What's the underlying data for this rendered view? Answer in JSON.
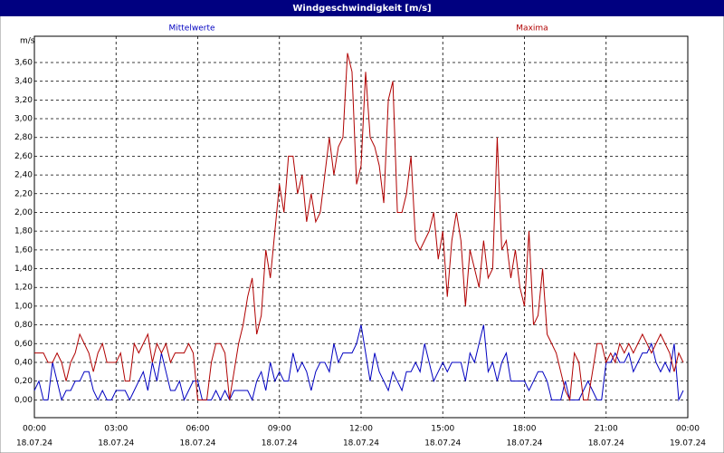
{
  "chart_data": {
    "type": "line",
    "title": "Windgeschwindigkeit [m/s]",
    "y_unit": "m/s",
    "grid": true,
    "x": [
      0,
      10,
      20,
      30,
      40,
      50,
      60,
      70,
      80,
      90,
      100,
      110,
      120,
      130,
      140,
      150,
      160,
      170,
      180,
      190,
      200,
      210,
      220,
      230,
      240,
      250,
      260,
      270,
      280,
      290,
      300,
      310,
      320,
      330,
      340,
      350,
      360,
      370,
      380,
      390,
      400,
      410,
      420,
      430,
      440,
      450,
      460,
      470,
      480,
      490,
      500,
      510,
      520,
      530,
      540,
      550,
      560,
      570,
      580,
      590,
      600,
      610,
      620,
      630,
      640,
      650,
      660,
      670,
      680,
      690,
      700,
      710,
      720,
      730,
      740,
      750,
      760,
      770,
      780,
      790,
      800,
      810,
      820,
      830,
      840,
      850,
      860,
      870,
      880,
      890,
      900,
      910,
      920,
      930,
      940,
      950,
      960,
      970,
      980,
      990,
      1000,
      1010,
      1020,
      1030,
      1040,
      1050,
      1060,
      1070,
      1080,
      1090,
      1100,
      1110,
      1120,
      1130,
      1140,
      1150,
      1160,
      1170,
      1180,
      1190,
      1200,
      1210,
      1220,
      1230,
      1240,
      1250,
      1260,
      1270,
      1280,
      1290,
      1300,
      1310,
      1320,
      1330,
      1340,
      1350,
      1360,
      1370,
      1380,
      1390,
      1400,
      1410,
      1420,
      1430
    ],
    "series": [
      {
        "name": "Mittelwerte",
        "color": "#0000c0",
        "values": [
          0.1,
          0.2,
          0.0,
          0.0,
          0.4,
          0.2,
          0.0,
          0.1,
          0.1,
          0.2,
          0.2,
          0.3,
          0.3,
          0.1,
          0.0,
          0.1,
          0.0,
          0.0,
          0.1,
          0.1,
          0.1,
          0.0,
          0.1,
          0.2,
          0.3,
          0.1,
          0.4,
          0.2,
          0.5,
          0.3,
          0.1,
          0.1,
          0.2,
          0.0,
          0.1,
          0.2,
          0.2,
          0.0,
          0.0,
          0.0,
          0.1,
          0.0,
          0.1,
          0.0,
          0.1,
          0.1,
          0.1,
          0.1,
          0.0,
          0.2,
          0.3,
          0.1,
          0.4,
          0.2,
          0.3,
          0.2,
          0.2,
          0.5,
          0.3,
          0.4,
          0.3,
          0.1,
          0.3,
          0.4,
          0.4,
          0.3,
          0.6,
          0.4,
          0.5,
          0.5,
          0.5,
          0.6,
          0.8,
          0.5,
          0.2,
          0.5,
          0.3,
          0.2,
          0.1,
          0.3,
          0.2,
          0.1,
          0.3,
          0.3,
          0.4,
          0.3,
          0.6,
          0.4,
          0.2,
          0.3,
          0.4,
          0.3,
          0.4,
          0.4,
          0.4,
          0.2,
          0.5,
          0.4,
          0.6,
          0.8,
          0.3,
          0.4,
          0.2,
          0.4,
          0.5,
          0.2,
          0.2,
          0.2,
          0.2,
          0.1,
          0.2,
          0.3,
          0.3,
          0.2,
          0.0,
          0.0,
          0.0,
          0.2,
          0.0,
          0.0,
          0.0,
          0.1,
          0.2,
          0.1,
          0.0,
          0.0,
          0.4,
          0.4,
          0.5,
          0.4,
          0.4,
          0.5,
          0.3,
          0.4,
          0.5,
          0.5,
          0.6,
          0.4,
          0.3,
          0.4,
          0.3,
          0.6,
          0.0,
          0.1
        ]
      },
      {
        "name": "Maxima",
        "color": "#b00000",
        "values": [
          0.5,
          0.5,
          0.5,
          0.4,
          0.4,
          0.5,
          0.4,
          0.2,
          0.4,
          0.5,
          0.7,
          0.6,
          0.5,
          0.3,
          0.5,
          0.6,
          0.4,
          0.4,
          0.4,
          0.5,
          0.2,
          0.2,
          0.6,
          0.5,
          0.6,
          0.7,
          0.4,
          0.6,
          0.5,
          0.6,
          0.4,
          0.5,
          0.5,
          0.5,
          0.6,
          0.5,
          0.0,
          0.0,
          0.0,
          0.4,
          0.6,
          0.6,
          0.5,
          0.0,
          0.3,
          0.6,
          0.8,
          1.1,
          1.3,
          0.7,
          0.9,
          1.6,
          1.3,
          1.8,
          2.3,
          2.0,
          2.6,
          2.6,
          2.2,
          2.4,
          1.9,
          2.2,
          1.9,
          2.0,
          2.4,
          2.8,
          2.4,
          2.7,
          2.8,
          3.7,
          3.5,
          2.3,
          2.5,
          3.5,
          2.8,
          2.7,
          2.5,
          2.1,
          3.2,
          3.4,
          2.0,
          2.0,
          2.2,
          2.6,
          1.7,
          1.6,
          1.7,
          1.8,
          2.0,
          1.5,
          1.8,
          1.1,
          1.7,
          2.0,
          1.7,
          1.0,
          1.6,
          1.4,
          1.2,
          1.7,
          1.3,
          1.4,
          2.8,
          1.6,
          1.7,
          1.3,
          1.6,
          1.2,
          1.0,
          1.8,
          0.8,
          0.9,
          1.4,
          0.7,
          0.6,
          0.5,
          0.3,
          0.1,
          0.0,
          0.5,
          0.4,
          0.0,
          0.0,
          0.3,
          0.6,
          0.6,
          0.4,
          0.5,
          0.4,
          0.6,
          0.5,
          0.6,
          0.5,
          0.6,
          0.7,
          0.6,
          0.5,
          0.6,
          0.7,
          0.6,
          0.5,
          0.3,
          0.5,
          0.4
        ]
      }
    ],
    "xlim": [
      0,
      1440
    ],
    "xticks": [
      {
        "value": 0,
        "label": "00:00",
        "date": "18.07.24"
      },
      {
        "value": 180,
        "label": "03:00",
        "date": "18.07.24"
      },
      {
        "value": 360,
        "label": "06:00",
        "date": "18.07.24"
      },
      {
        "value": 540,
        "label": "09:00",
        "date": "18.07.24"
      },
      {
        "value": 720,
        "label": "12:00",
        "date": "18.07.24"
      },
      {
        "value": 900,
        "label": "15:00",
        "date": "18.07.24"
      },
      {
        "value": 1080,
        "label": "18:00",
        "date": "18.07.24"
      },
      {
        "value": 1260,
        "label": "21:00",
        "date": "18.07.24"
      },
      {
        "value": 1440,
        "label": "00:00",
        "date": "19.07.24"
      }
    ],
    "ylim": [
      -0.19,
      3.88
    ],
    "yticks": [
      {
        "value": 0,
        "label": "0,00"
      },
      {
        "value": 0.2,
        "label": "0,20"
      },
      {
        "value": 0.4,
        "label": "0,40"
      },
      {
        "value": 0.6,
        "label": "0,60"
      },
      {
        "value": 0.8,
        "label": "0,80"
      },
      {
        "value": 1.0,
        "label": "1,00"
      },
      {
        "value": 1.2,
        "label": "1,20"
      },
      {
        "value": 1.4,
        "label": "1,40"
      },
      {
        "value": 1.6,
        "label": "1,60"
      },
      {
        "value": 1.8,
        "label": "1,80"
      },
      {
        "value": 2.0,
        "label": "2,00"
      },
      {
        "value": 2.2,
        "label": "2,20"
      },
      {
        "value": 2.4,
        "label": "2,40"
      },
      {
        "value": 2.6,
        "label": "2,60"
      },
      {
        "value": 2.8,
        "label": "2,80"
      },
      {
        "value": 3.0,
        "label": "3,00"
      },
      {
        "value": 3.2,
        "label": "3,20"
      },
      {
        "value": 3.4,
        "label": "3,40"
      },
      {
        "value": 3.6,
        "label": "3,60"
      }
    ]
  }
}
